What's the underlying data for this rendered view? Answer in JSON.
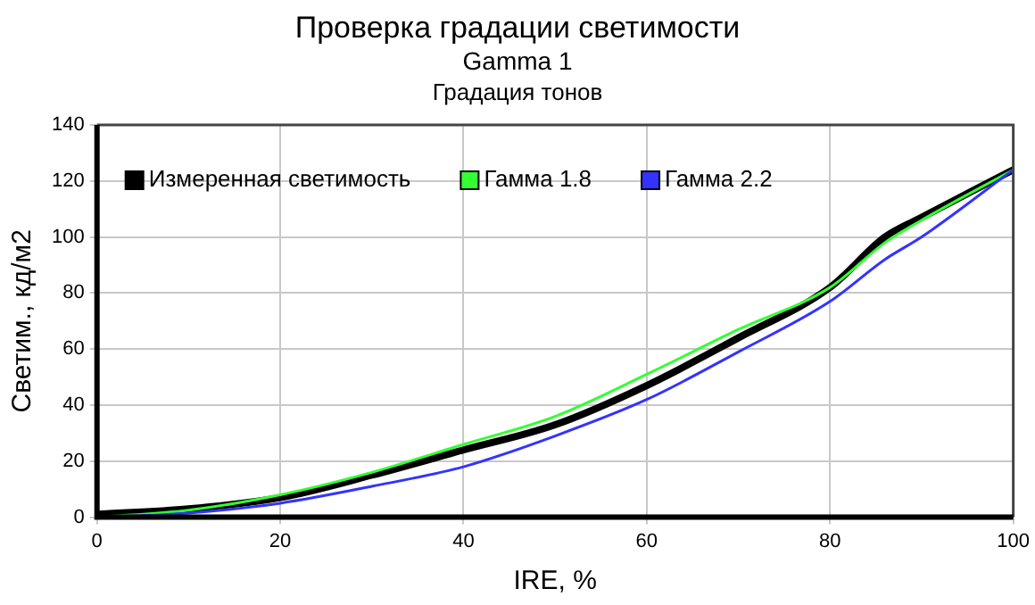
{
  "chart_data": {
    "type": "line",
    "title": "Проверка градации светимости",
    "subtitle": "Gamma 1",
    "annotations": [
      "Градация тонов"
    ],
    "xlabel": "IRE, %",
    "ylabel": "Светим., кд/м2",
    "x": [
      0,
      10,
      20,
      30,
      40,
      50,
      60,
      70,
      80,
      86,
      90,
      100
    ],
    "series": [
      {
        "name": "Измеренная светимость",
        "color": "#000000",
        "values": [
          1,
          3,
          7,
          15,
          24,
          33,
          47,
          64,
          82,
          100,
          107,
          124
        ]
      },
      {
        "name": "Гамма 1.8",
        "color": "#33ff33",
        "values": [
          0,
          2.5,
          8,
          16,
          26,
          36,
          51,
          67,
          82,
          98,
          106,
          124
        ]
      },
      {
        "name": "Гамма 2.2",
        "color": "#3333ff",
        "values": [
          0,
          1.5,
          5,
          11,
          18,
          29,
          42,
          59,
          77,
          92,
          100,
          124
        ]
      }
    ],
    "xlim": [
      0,
      100
    ],
    "xticks": [
      0,
      20,
      40,
      60,
      80,
      100
    ],
    "ylim": [
      0,
      140
    ],
    "yticks": [
      0,
      20,
      40,
      60,
      80,
      100,
      120,
      140
    ],
    "grid": true,
    "legend": "top left",
    "marker": "none",
    "line_style": "solid"
  }
}
